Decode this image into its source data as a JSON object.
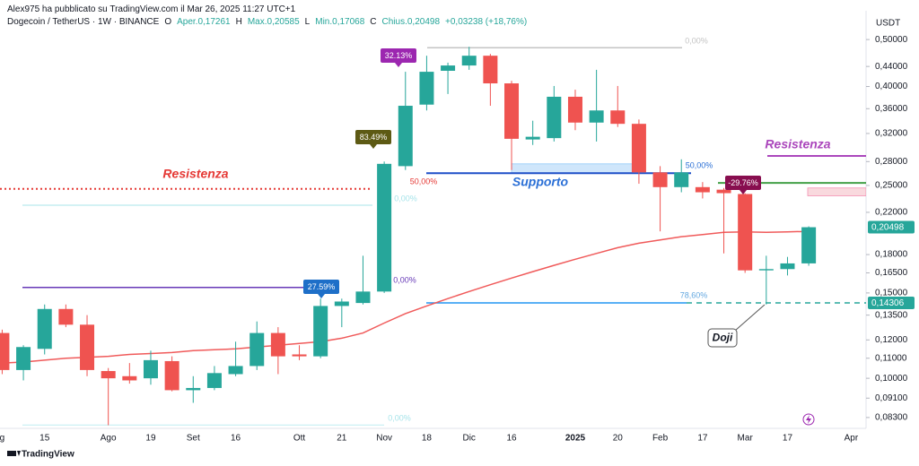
{
  "chart_data": {
    "type": "candlestick",
    "header": {
      "attribution": "Alex975 ha pubblicato su TradingView.com il Mar 26, 2025 11:27 UTC+1",
      "symbol": "Dogecoin / TetherUS · 1W · BINANCE",
      "ohlc": [
        "O",
        "Aper.0,17261",
        "H",
        "Max.0,20585",
        "L",
        "Min.0,17068",
        "C",
        "Chius.0,20498",
        "+0,03238 (+18,76%)"
      ]
    },
    "footer": "TradingView",
    "y_unit": "USDT",
    "log": true,
    "ylim": [
      0.0749,
      0.566
    ],
    "yticks": [
      {
        "value": 0.5,
        "label": "0,50000"
      },
      {
        "value": 0.44,
        "label": "0,44000"
      },
      {
        "value": 0.4,
        "label": "0,40000"
      },
      {
        "value": 0.36,
        "label": "0,36000"
      },
      {
        "value": 0.32,
        "label": "0,32000"
      },
      {
        "value": 0.28,
        "label": "0,28000"
      },
      {
        "value": 0.25,
        "label": "0,25000"
      },
      {
        "value": 0.22,
        "label": "0,22000"
      },
      {
        "value": 0.18,
        "label": "0,18000"
      },
      {
        "value": 0.165,
        "label": "0,16500"
      },
      {
        "value": 0.15,
        "label": "0,15000"
      },
      {
        "value": 0.135,
        "label": "0,13500"
      },
      {
        "value": 0.12,
        "label": "0,12000"
      },
      {
        "value": 0.11,
        "label": "0,11000"
      },
      {
        "value": 0.1,
        "label": "0,10000"
      },
      {
        "value": 0.091,
        "label": "0,09100"
      },
      {
        "value": 0.083,
        "label": "0,08300"
      }
    ],
    "categories": [
      "g",
      null,
      "15",
      null,
      null,
      "Ago",
      null,
      "19",
      null,
      "Set",
      null,
      "16",
      null,
      null,
      "Ott",
      null,
      "21",
      null,
      "Nov",
      null,
      "18",
      null,
      "Dic",
      null,
      "16",
      null,
      null,
      "2025",
      null,
      "20",
      null,
      "Feb",
      null,
      "17",
      null,
      "Mar",
      null,
      "17",
      null,
      null,
      "Apr"
    ],
    "open": [
      0.124,
      0.104,
      0.115,
      0.139,
      0.129,
      0.1035,
      0.101,
      0.1,
      0.1085,
      0.0945,
      0.0955,
      0.102,
      0.106,
      0.124,
      0.112,
      0.111,
      0.141,
      0.143,
      0.151,
      0.274,
      0.367,
      0.431,
      0.442,
      0.463,
      0.406,
      0.311,
      0.313,
      0.381,
      0.337,
      0.357,
      0.335,
      0.266,
      0.248,
      0.248,
      0.245,
      0.24,
      0.167,
      0.168,
      0.17261,
      null,
      null
    ],
    "high": [
      0.126,
      0.117,
      0.142,
      0.142,
      0.135,
      0.105,
      0.1075,
      0.114,
      0.111,
      0.101,
      0.106,
      0.119,
      0.131,
      0.1275,
      0.117,
      0.146,
      0.146,
      0.179,
      0.28,
      0.429,
      0.463,
      0.448,
      0.483,
      0.467,
      0.411,
      0.34,
      0.401,
      0.394,
      0.433,
      0.401,
      0.342,
      0.274,
      0.283,
      0.254,
      0.247,
      0.241,
      0.179,
      0.178,
      0.20585,
      null,
      null
    ],
    "low": [
      0.102,
      0.099,
      0.112,
      0.1275,
      0.101,
      0.08,
      0.0975,
      0.097,
      0.094,
      0.089,
      0.0945,
      0.101,
      0.104,
      0.102,
      0.109,
      0.11,
      0.1275,
      0.142,
      0.15,
      0.269,
      0.357,
      0.386,
      0.433,
      0.365,
      0.269,
      0.303,
      0.308,
      0.325,
      0.308,
      0.33,
      0.252,
      0.201,
      0.242,
      0.235,
      0.181,
      0.165,
      0.142,
      0.163,
      0.17068,
      null,
      null
    ],
    "close": [
      0.104,
      0.116,
      0.139,
      0.129,
      0.104,
      0.1,
      0.099,
      0.109,
      0.0945,
      0.0955,
      0.1025,
      0.106,
      0.124,
      0.111,
      0.111,
      0.141,
      0.144,
      0.151,
      0.277,
      0.365,
      0.429,
      0.442,
      0.463,
      0.406,
      0.312,
      0.315,
      0.381,
      0.337,
      0.357,
      0.335,
      0.266,
      0.248,
      0.266,
      0.242,
      0.241,
      0.167,
      0.168,
      0.1726,
      0.20498,
      null,
      null
    ],
    "up_color": "#26a69a",
    "down_color": "#ef5350",
    "ma": {
      "color": "#f05a5a",
      "values": [
        0.1075,
        0.108,
        0.109,
        0.11,
        0.1105,
        0.111,
        0.112,
        0.1125,
        0.113,
        0.114,
        0.1145,
        0.115,
        0.116,
        0.117,
        0.118,
        0.119,
        0.121,
        0.124,
        0.13,
        0.136,
        0.141,
        0.146,
        0.151,
        0.156,
        0.161,
        0.166,
        0.171,
        0.176,
        0.181,
        0.186,
        0.19,
        0.193,
        0.196,
        0.198,
        0.2,
        0.2005,
        0.2,
        0.2005,
        0.201,
        null,
        null
      ]
    },
    "price_tags": [
      {
        "value": 0.20498,
        "label": "0,20498",
        "color": "#26a69a"
      },
      {
        "value": 0.14306,
        "label": "0,14306",
        "color": "#26a69a"
      }
    ],
    "levels": [
      {
        "value": 0.246,
        "color": "#e53935"
      },
      {
        "value": 0.2276,
        "color": "#a7e4ea"
      },
      {
        "value": 0.154,
        "color": "#673ab7"
      },
      {
        "value": 0.0801,
        "color": "#bfeef2"
      },
      {
        "value": 0.481,
        "color": "#c4c4c4"
      },
      {
        "value": 0.265,
        "color": "#1e4fc8"
      },
      {
        "value": 0.14306,
        "color": "#2196f3"
      },
      {
        "value": 0.14306,
        "color": "#26a69a"
      },
      {
        "value": 0.2876,
        "color": "#ab47bc"
      },
      {
        "value": 0.253,
        "color": "#43a047"
      }
    ],
    "zones": [
      {
        "top": 0.277,
        "bottom": 0.265,
        "color": "#cfe6fb"
      },
      {
        "top": 0.247,
        "bottom": 0.238,
        "color": "#f9d9de"
      }
    ],
    "annotations": [
      {
        "text": "Resistenza",
        "color": "#e53935"
      },
      {
        "text": "Supporto",
        "color": "#2a6fd6"
      },
      {
        "text": "Resistenza",
        "color": "#ab47bc"
      },
      {
        "text": "Doji",
        "color": "#131722"
      },
      {
        "text": "32.13%",
        "color": "#9c27b0"
      },
      {
        "text": "83.49%",
        "color": "#5d5a14"
      },
      {
        "text": "27.59%",
        "color": "#1e6fc8"
      },
      {
        "text": "-29.76%",
        "color": "#880e4f"
      },
      {
        "text": "50,00%",
        "color": "#e53935"
      },
      {
        "text": "50,00%",
        "color": "#2a6fd6"
      },
      {
        "text": "0,00%",
        "color": "#c4c4c4"
      },
      {
        "text": "0,00%",
        "color": "#a7e4ea"
      },
      {
        "text": "0,00%",
        "color": "#673ab7"
      },
      {
        "text": "78,60%",
        "color": "#64a8e0"
      },
      {
        "text": "0,00%",
        "color": "#a7e4ea"
      }
    ]
  }
}
